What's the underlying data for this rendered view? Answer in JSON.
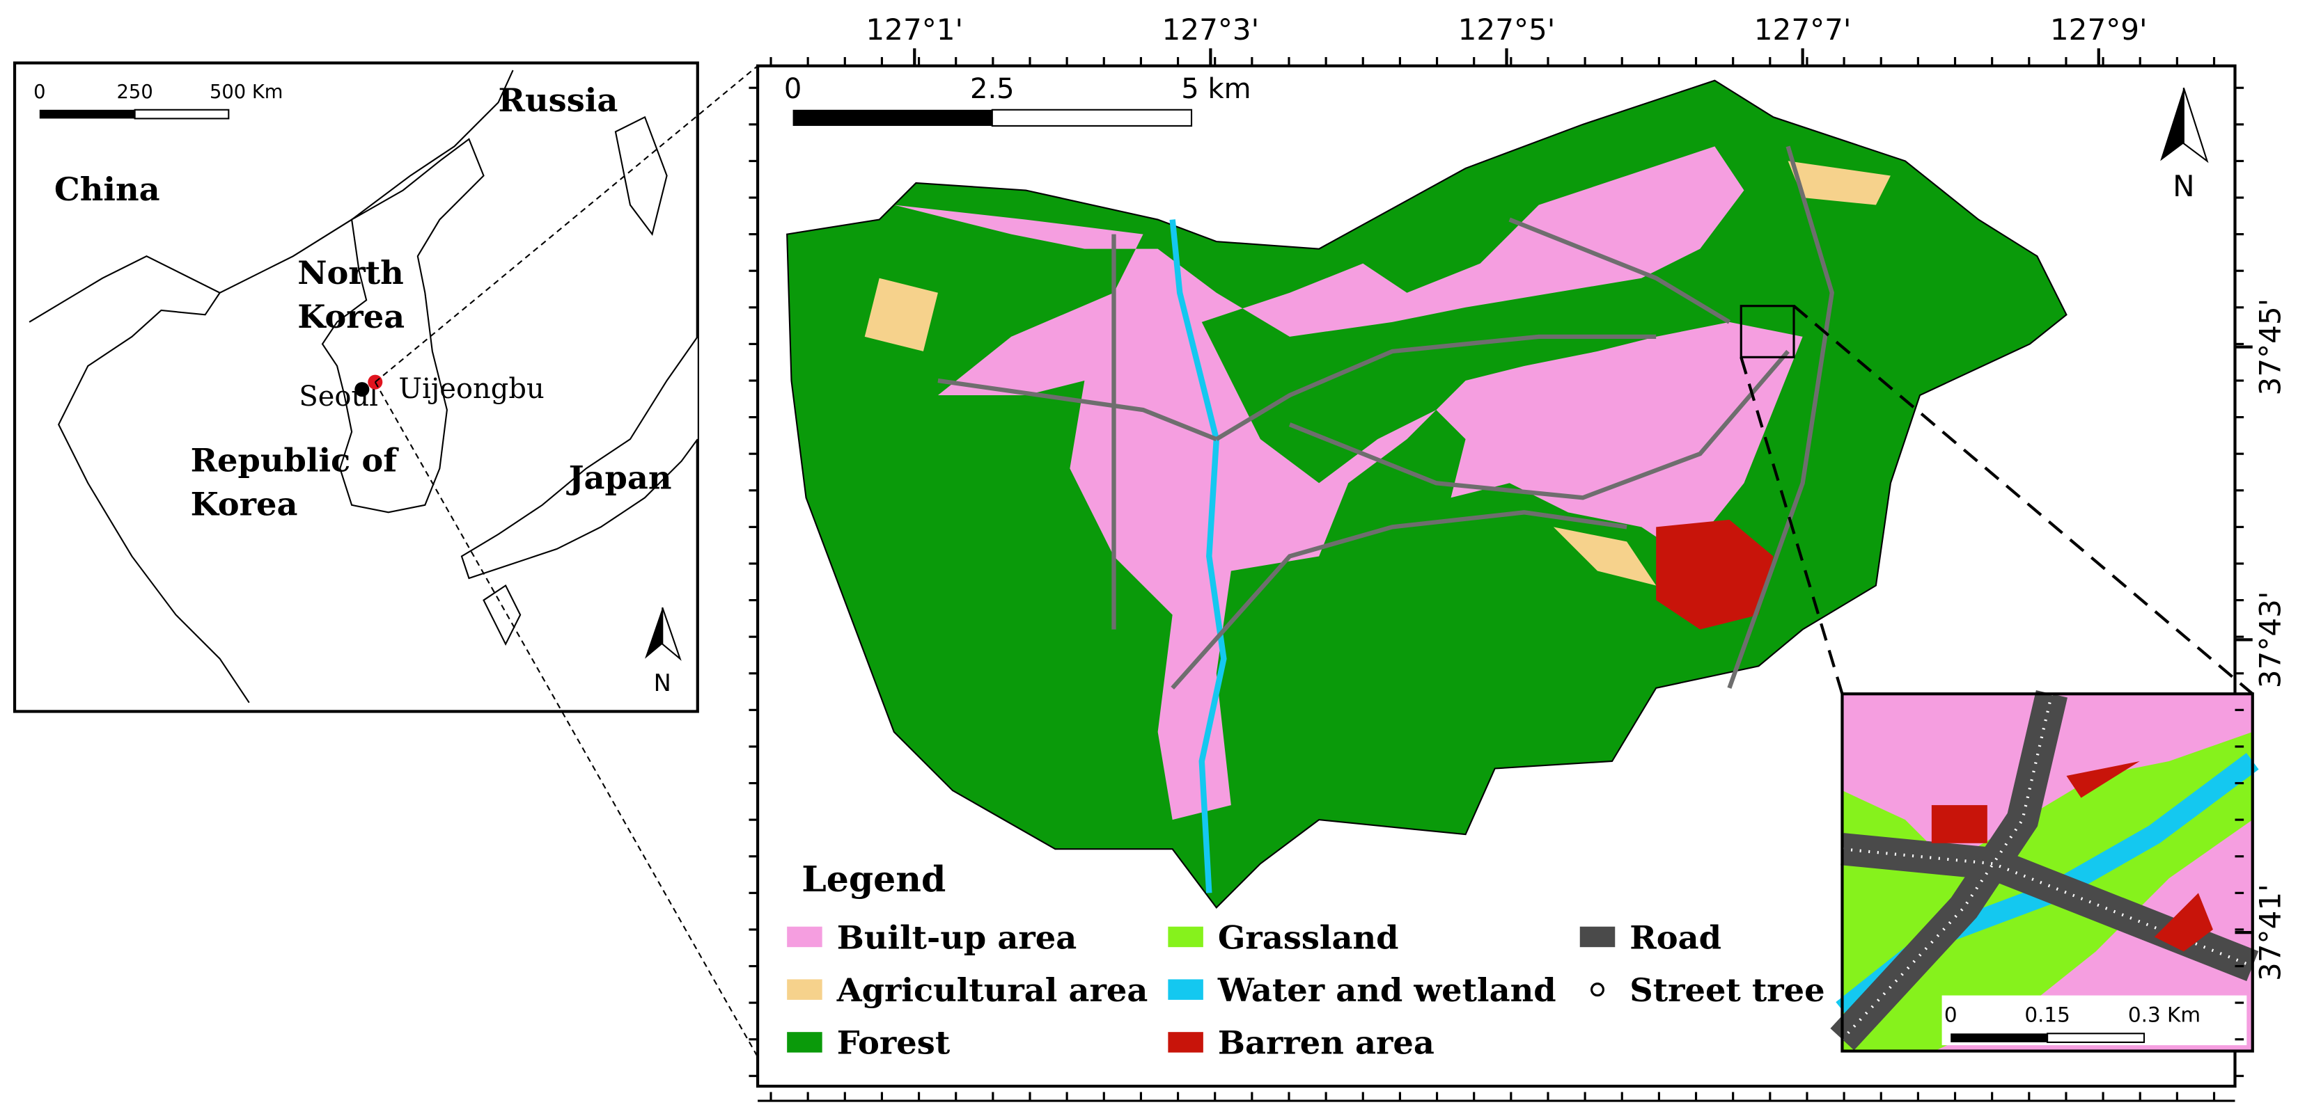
{
  "overview_map": {
    "scale_bar": [
      "0",
      "250",
      "500 Km"
    ],
    "russia": "Russia",
    "china": "China",
    "north_korea": [
      "North",
      "Korea"
    ],
    "south_korea": [
      "Republic of",
      "Korea"
    ],
    "japan": "Japan",
    "seoul": "Seoul",
    "uijeongbu": "Uijeongbu",
    "north": "N"
  },
  "study_area_map": {
    "x_ticks": [
      "127°1'",
      "127°3'",
      "127°5'",
      "127°7'",
      "127°9'"
    ],
    "y_ticks": [
      "37°45'",
      "37°43'",
      "37°41'"
    ],
    "scale_bar": [
      "0",
      "2.5",
      "5 km"
    ],
    "north": "N",
    "legend": {
      "title": "Legend",
      "items": [
        {
          "label": "Built-up area",
          "color": "#f59ee0"
        },
        {
          "label": "Agricultural area",
          "color": "#f6d28c"
        },
        {
          "label": "Forest",
          "color": "#0a9a0a"
        },
        {
          "label": "Grassland",
          "color": "#86f21c"
        },
        {
          "label": "Water and wetland",
          "color": "#14c8f0"
        },
        {
          "label": "Barren area",
          "color": "#c8140a"
        },
        {
          "label": "Road",
          "color": "#4a4a4a"
        },
        {
          "label": "Street tree",
          "color": "#ffffff"
        }
      ]
    }
  },
  "zoom_inset": {
    "scale_bar": [
      "0",
      "0.15",
      "0.3 Km"
    ]
  }
}
